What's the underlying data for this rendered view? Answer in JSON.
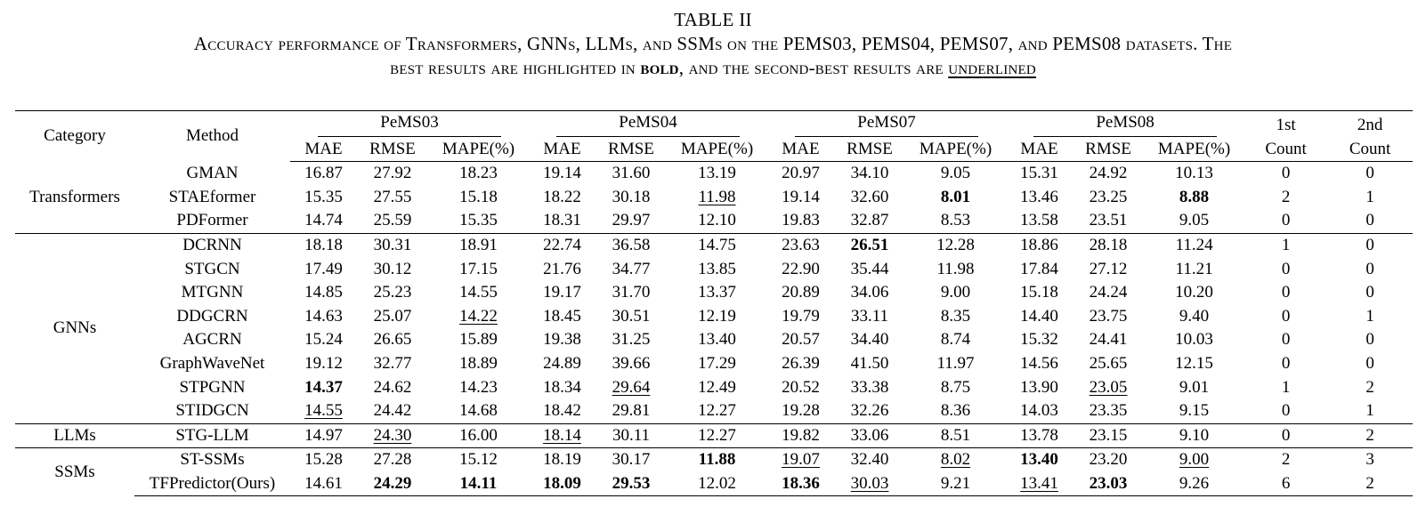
{
  "caption": {
    "title": "TABLE II",
    "line1": "Accuracy performance of Transformers, GNNs, LLMs, and SSMs on the PEMS03, PEMS04, PEMS07, and PEMS08 datasets. The",
    "line2_pre": "best results are highlighted in ",
    "line2_bold": "bold",
    "line2_mid": ", and the second-best results are ",
    "line2_underline": "underlined"
  },
  "header": {
    "category": "Category",
    "method": "Method",
    "datasets": [
      "PeMS03",
      "PeMS04",
      "PeMS07",
      "PeMS08"
    ],
    "metrics": [
      "MAE",
      "RMSE",
      "MAPE(%)"
    ],
    "first_count": [
      "1st",
      "Count"
    ],
    "second_count": [
      "2nd",
      "Count"
    ]
  },
  "groups": [
    {
      "category": "Transformers",
      "rows": [
        {
          "method": "GMAN",
          "values": [
            "16.87",
            "27.92",
            "18.23",
            "19.14",
            "31.60",
            "13.19",
            "20.97",
            "34.10",
            "9.05",
            "15.31",
            "24.92",
            "10.13",
            "0",
            "0"
          ],
          "bold": [],
          "underline": []
        },
        {
          "method": "STAEformer",
          "values": [
            "15.35",
            "27.55",
            "15.18",
            "18.22",
            "30.18",
            "11.98",
            "19.14",
            "32.60",
            "8.01",
            "13.46",
            "23.25",
            "8.88",
            "2",
            "1"
          ],
          "bold": [
            8,
            11
          ],
          "underline": [
            5
          ]
        },
        {
          "method": "PDFormer",
          "values": [
            "14.74",
            "25.59",
            "15.35",
            "18.31",
            "29.97",
            "12.10",
            "19.83",
            "32.87",
            "8.53",
            "13.58",
            "23.51",
            "9.05",
            "0",
            "0"
          ],
          "bold": [],
          "underline": []
        }
      ]
    },
    {
      "category": "GNNs",
      "rows": [
        {
          "method": "DCRNN",
          "values": [
            "18.18",
            "30.31",
            "18.91",
            "22.74",
            "36.58",
            "14.75",
            "23.63",
            "26.51",
            "12.28",
            "18.86",
            "28.18",
            "11.24",
            "1",
            "0"
          ],
          "bold": [
            7
          ],
          "underline": []
        },
        {
          "method": "STGCN",
          "values": [
            "17.49",
            "30.12",
            "17.15",
            "21.76",
            "34.77",
            "13.85",
            "22.90",
            "35.44",
            "11.98",
            "17.84",
            "27.12",
            "11.21",
            "0",
            "0"
          ],
          "bold": [],
          "underline": []
        },
        {
          "method": "MTGNN",
          "values": [
            "14.85",
            "25.23",
            "14.55",
            "19.17",
            "31.70",
            "13.37",
            "20.89",
            "34.06",
            "9.00",
            "15.18",
            "24.24",
            "10.20",
            "0",
            "0"
          ],
          "bold": [],
          "underline": []
        },
        {
          "method": "DDGCRN",
          "values": [
            "14.63",
            "25.07",
            "14.22",
            "18.45",
            "30.51",
            "12.19",
            "19.79",
            "33.11",
            "8.35",
            "14.40",
            "23.75",
            "9.40",
            "0",
            "1"
          ],
          "bold": [],
          "underline": [
            2
          ]
        },
        {
          "method": "AGCRN",
          "values": [
            "15.24",
            "26.65",
            "15.89",
            "19.38",
            "31.25",
            "13.40",
            "20.57",
            "34.40",
            "8.74",
            "15.32",
            "24.41",
            "10.03",
            "0",
            "0"
          ],
          "bold": [],
          "underline": []
        },
        {
          "method": "GraphWaveNet",
          "values": [
            "19.12",
            "32.77",
            "18.89",
            "24.89",
            "39.66",
            "17.29",
            "26.39",
            "41.50",
            "11.97",
            "14.56",
            "25.65",
            "12.15",
            "0",
            "0"
          ],
          "bold": [],
          "underline": []
        },
        {
          "method": "STPGNN",
          "values": [
            "14.37",
            "24.62",
            "14.23",
            "18.34",
            "29.64",
            "12.49",
            "20.52",
            "33.38",
            "8.75",
            "13.90",
            "23.05",
            "9.01",
            "1",
            "2"
          ],
          "bold": [
            0
          ],
          "underline": [
            4,
            10
          ]
        },
        {
          "method": "STIDGCN",
          "values": [
            "14.55",
            "24.42",
            "14.68",
            "18.42",
            "29.81",
            "12.27",
            "19.28",
            "32.26",
            "8.36",
            "14.03",
            "23.35",
            "9.15",
            "0",
            "1"
          ],
          "bold": [],
          "underline": [
            0
          ]
        }
      ]
    },
    {
      "category": "LLMs",
      "rows": [
        {
          "method": "STG-LLM",
          "values": [
            "14.97",
            "24.30",
            "16.00",
            "18.14",
            "30.11",
            "12.27",
            "19.82",
            "33.06",
            "8.51",
            "13.78",
            "23.15",
            "9.10",
            "0",
            "2"
          ],
          "bold": [],
          "underline": [
            1,
            3
          ]
        }
      ]
    },
    {
      "category": "SSMs",
      "rows": [
        {
          "method": "ST-SSMs",
          "values": [
            "15.28",
            "27.28",
            "15.12",
            "18.19",
            "30.17",
            "11.88",
            "19.07",
            "32.40",
            "8.02",
            "13.40",
            "23.20",
            "9.00",
            "2",
            "3"
          ],
          "bold": [
            5,
            9
          ],
          "underline": [
            6,
            8,
            11
          ]
        },
        {
          "method": "TFPredictor(Ours)",
          "values": [
            "14.61",
            "24.29",
            "14.11",
            "18.09",
            "29.53",
            "12.02",
            "18.36",
            "30.03",
            "9.21",
            "13.41",
            "23.03",
            "9.26",
            "6",
            "2"
          ],
          "bold": [
            1,
            2,
            3,
            4,
            6,
            10
          ],
          "underline": [
            7,
            9
          ]
        }
      ]
    }
  ]
}
